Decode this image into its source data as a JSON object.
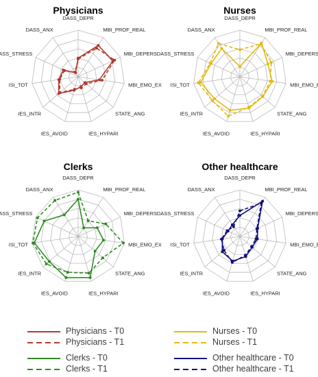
{
  "chart_data": [
    {
      "type": "radar",
      "title": "Physicians",
      "axes": [
        "DASS_DEPR",
        "MBI_PROF_REAL",
        "MBI_DEPERS",
        "MBI_EMO_EX",
        "STATE_ANG",
        "IES_HYPARI",
        "IES_AVOID",
        "IES_INTR",
        "ISI_TOT",
        "DASS_STRESS",
        "DASS_ANX"
      ],
      "rlim": [
        0,
        1
      ],
      "grid": true,
      "series": [
        {
          "name": "Physicians - T0",
          "values": [
            0.4,
            0.8,
            0.82,
            0.46,
            0.19,
            0.22,
            0.3,
            0.55,
            0.42,
            0.35,
            0.1
          ]
        },
        {
          "name": "Physicians - T1",
          "values": [
            0.38,
            0.73,
            0.86,
            0.52,
            0.23,
            0.25,
            0.28,
            0.52,
            0.4,
            0.32,
            0.12
          ]
        }
      ]
    },
    {
      "type": "radar",
      "title": "Nurses",
      "axes": [
        "DASS_DEPR",
        "MBI_PROF_REAL",
        "MBI_DEPERS",
        "MBI_EMO_EX",
        "STATE_ANG",
        "IES_HYPARI",
        "IES_AVOID",
        "IES_INTR",
        "ISI_TOT",
        "DASS_STRESS",
        "DASS_ANX"
      ],
      "rlim": [
        0,
        1
      ],
      "grid": true,
      "series": [
        {
          "name": "Nurses - T0",
          "values": [
            0.22,
            0.86,
            0.66,
            0.7,
            0.65,
            0.7,
            0.75,
            0.72,
            0.85,
            0.68,
            0.72
          ]
        },
        {
          "name": "Nurses - T1",
          "values": [
            0.58,
            0.84,
            0.74,
            0.66,
            0.64,
            0.68,
            0.88,
            0.78,
            0.9,
            0.7,
            0.85
          ]
        }
      ]
    },
    {
      "type": "radar",
      "title": "Clerks",
      "axes": [
        "DASS_DEPR",
        "MBI_PROF_REAL",
        "MBI_DEPERS",
        "MBI_EMO_EX",
        "STATE_ANG",
        "IES_HYPARI",
        "IES_AVOID",
        "IES_INTR",
        "ISI_TOT",
        "DASS_STRESS",
        "DASS_ANX"
      ],
      "rlim": [
        0,
        1
      ],
      "grid": true,
      "series": [
        {
          "name": "Clerks - T0",
          "values": [
            0.8,
            0.22,
            0.45,
            0.55,
            0.48,
            0.92,
            0.92,
            0.82,
            0.95,
            0.8,
            0.55
          ]
        },
        {
          "name": "Clerks - T1",
          "values": [
            0.95,
            0.4,
            0.65,
            0.98,
            0.7,
            0.82,
            0.8,
            0.9,
            0.98,
            0.96,
            0.92
          ]
        }
      ]
    },
    {
      "type": "radar",
      "title": "Other healthcare",
      "axes": [
        "DASS_DEPR",
        "MBI_PROF_REAL",
        "MBI_DEPERS",
        "MBI_EMO_EX",
        "STATE_ANG",
        "IES_HYPARI",
        "IES_AVOID",
        "IES_INTR",
        "ISI_TOT",
        "DASS_STRESS",
        "DASS_ANX"
      ],
      "rlim": [
        0,
        1
      ],
      "grid": true,
      "series": [
        {
          "name": "Other healthcare - T0",
          "values": [
            0.45,
            0.9,
            0.42,
            0.38,
            0.35,
            0.45,
            0.55,
            0.5,
            0.38,
            0.28,
            0.3
          ]
        },
        {
          "name": "Other healthcare - T1",
          "values": [
            0.55,
            0.85,
            0.4,
            0.35,
            0.33,
            0.42,
            0.58,
            0.45,
            0.4,
            0.3,
            0.25
          ]
        }
      ]
    }
  ],
  "colors": {
    "Physicians": "#b03a2e",
    "Nurses": "#e5b80b",
    "Clerks": "#2e8b22",
    "Other healthcare": "#10107a",
    "grid": "#b8b8b8",
    "axis_label": "#222222"
  },
  "legend": {
    "placement": "bottom",
    "items": [
      {
        "label": "Physicians - T0",
        "group": "Physicians",
        "dash": false
      },
      {
        "label": "Physicians - T1",
        "group": "Physicians",
        "dash": true
      },
      {
        "label": "Nurses - T0",
        "group": "Nurses",
        "dash": false
      },
      {
        "label": "Nurses - T1",
        "group": "Nurses",
        "dash": true
      },
      {
        "label": "Clerks - T0",
        "group": "Clerks",
        "dash": false
      },
      {
        "label": "Clerks - T1",
        "group": "Clerks",
        "dash": true
      },
      {
        "label": "Other healthcare - T0",
        "group": "Other healthcare",
        "dash": false
      },
      {
        "label": "Other healthcare - T1",
        "group": "Other healthcare",
        "dash": true
      }
    ]
  }
}
